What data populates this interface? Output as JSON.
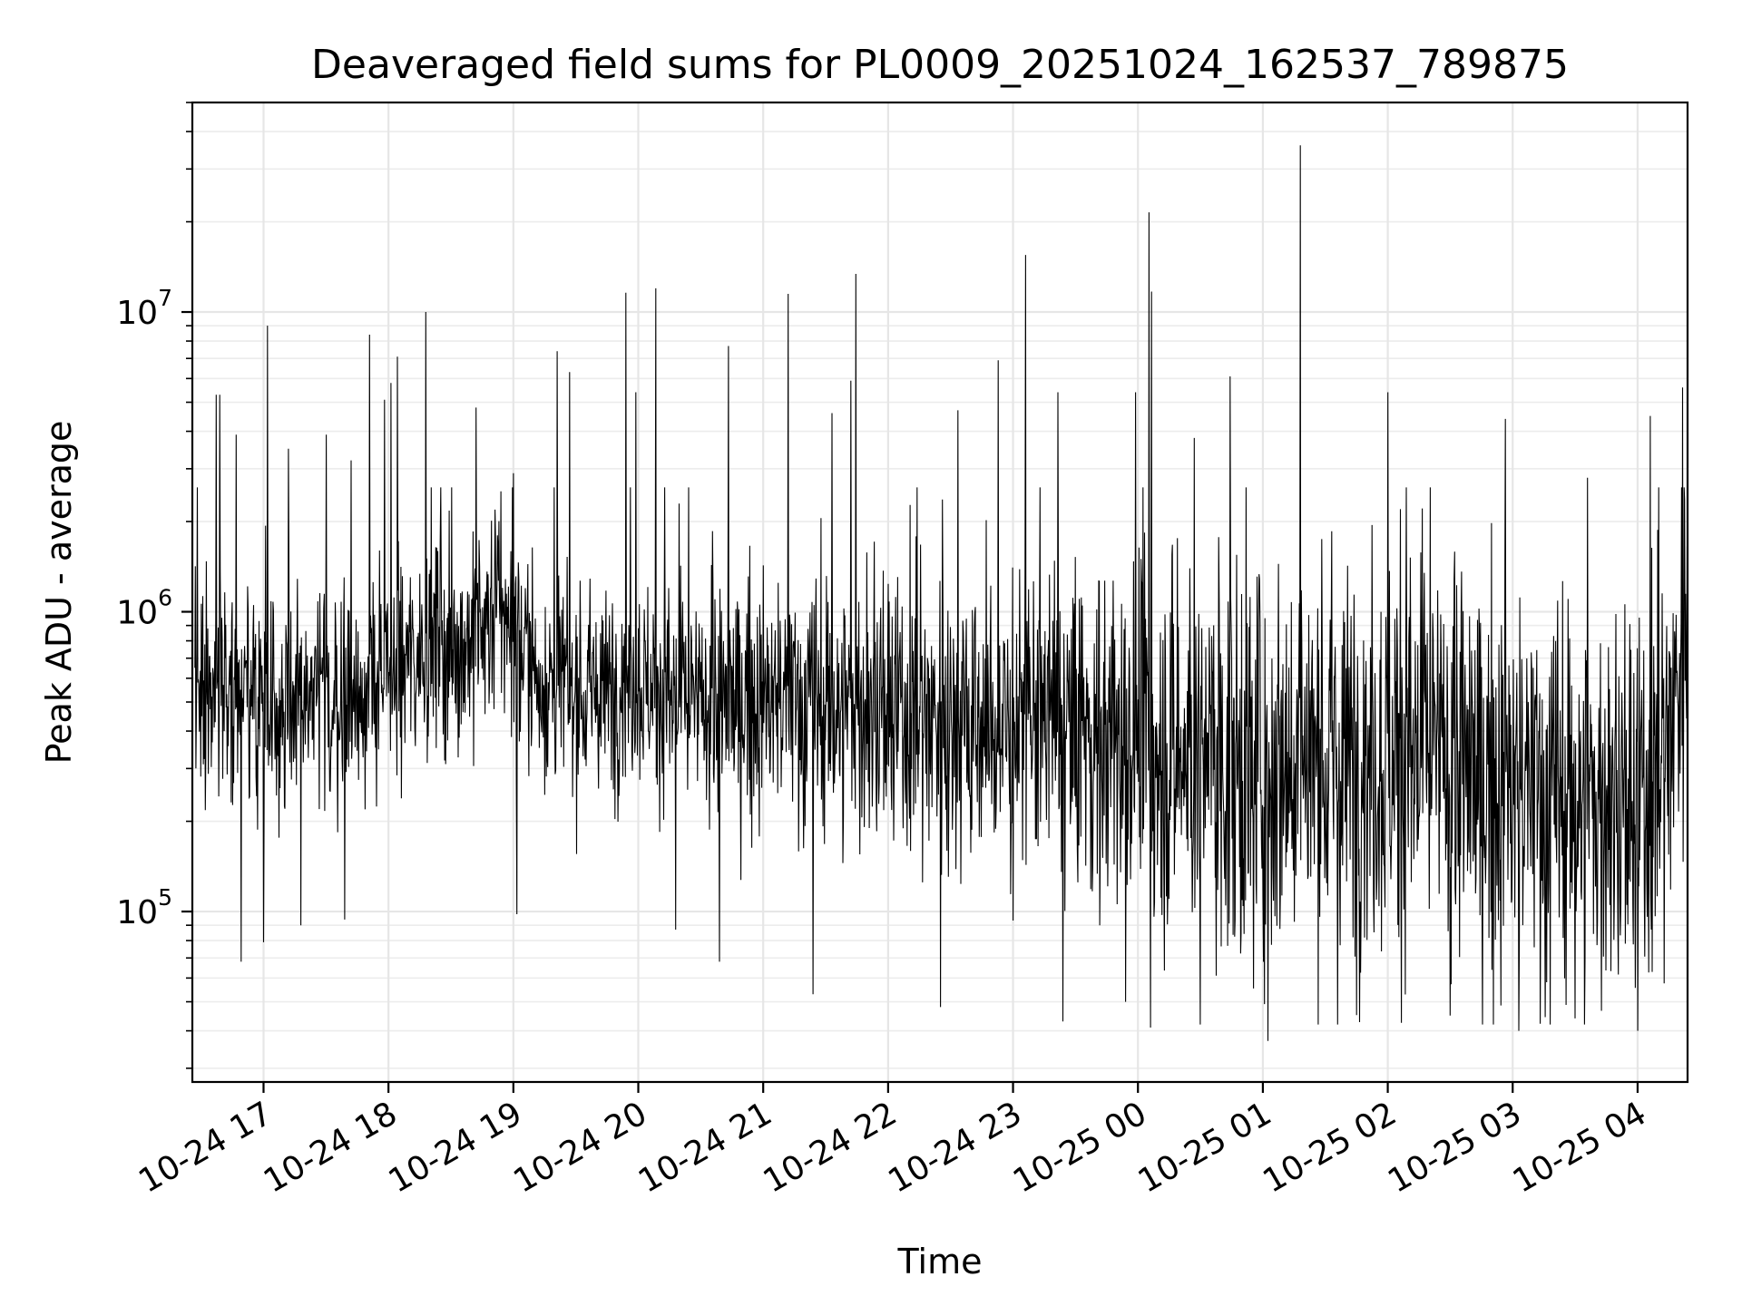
{
  "chart_data": {
    "type": "line",
    "title": "Deaveraged field sums for PL0009_20251024_162537_789875",
    "xlabel": "Time",
    "ylabel": "Peak ADU - average",
    "yscale": "log",
    "ylim": [
      27000,
      50000000
    ],
    "xlim_hours": [
      16.43,
      28.4
    ],
    "grid": true,
    "line_color": "#000000",
    "x_ticks": [
      {
        "hour": 17,
        "label": "10-24 17"
      },
      {
        "hour": 18,
        "label": "10-24 18"
      },
      {
        "hour": 19,
        "label": "10-24 19"
      },
      {
        "hour": 20,
        "label": "10-24 20"
      },
      {
        "hour": 21,
        "label": "10-24 21"
      },
      {
        "hour": 22,
        "label": "10-24 22"
      },
      {
        "hour": 23,
        "label": "10-24 23"
      },
      {
        "hour": 24,
        "label": "10-25 00"
      },
      {
        "hour": 25,
        "label": "10-25 01"
      },
      {
        "hour": 26,
        "label": "10-25 02"
      },
      {
        "hour": 27,
        "label": "10-25 03"
      },
      {
        "hour": 28,
        "label": "10-25 04"
      }
    ],
    "y_ticks": [
      {
        "value": 100000,
        "base": "10",
        "exp": "5"
      },
      {
        "value": 1000000,
        "base": "10",
        "exp": "6"
      },
      {
        "value": 10000000,
        "base": "10",
        "exp": "7"
      }
    ],
    "series": [
      {
        "name": "Peak ADU - average",
        "n_points": 3000,
        "baseline": [
          [
            16.45,
            550000
          ],
          [
            16.7,
            600000
          ],
          [
            17.0,
            480000
          ],
          [
            17.5,
            500000
          ],
          [
            18.0,
            580000
          ],
          [
            18.3,
            800000
          ],
          [
            18.6,
            750000
          ],
          [
            18.9,
            1050000
          ],
          [
            19.2,
            600000
          ],
          [
            19.6,
            520000
          ],
          [
            20.0,
            600000
          ],
          [
            20.4,
            480000
          ],
          [
            20.8,
            500000
          ],
          [
            21.2,
            500000
          ],
          [
            21.6,
            470000
          ],
          [
            22.0,
            430000
          ],
          [
            22.4,
            450000
          ],
          [
            22.8,
            400000
          ],
          [
            23.2,
            430000
          ],
          [
            23.6,
            380000
          ],
          [
            24.0,
            350000
          ],
          [
            24.4,
            320000
          ],
          [
            24.8,
            300000
          ],
          [
            25.2,
            330000
          ],
          [
            25.6,
            320000
          ],
          [
            26.0,
            330000
          ],
          [
            26.4,
            320000
          ],
          [
            26.8,
            270000
          ],
          [
            27.2,
            250000
          ],
          [
            27.6,
            230000
          ],
          [
            28.0,
            200000
          ],
          [
            28.2,
            300000
          ],
          [
            28.4,
            900000
          ]
        ],
        "spikes": [
          [
            16.62,
            5300000
          ],
          [
            16.65,
            5300000
          ],
          [
            16.78,
            3900000
          ],
          [
            17.03,
            9000000
          ],
          [
            17.2,
            3500000
          ],
          [
            17.5,
            3900000
          ],
          [
            17.7,
            3200000
          ],
          [
            17.85,
            8400000
          ],
          [
            17.97,
            5100000
          ],
          [
            18.02,
            5800000
          ],
          [
            18.07,
            7100000
          ],
          [
            18.3,
            10000000
          ],
          [
            18.7,
            4800000
          ],
          [
            19.0,
            2900000
          ],
          [
            19.35,
            7400000
          ],
          [
            19.45,
            6300000
          ],
          [
            19.9,
            11600000
          ],
          [
            19.98,
            5400000
          ],
          [
            20.14,
            12000000
          ],
          [
            20.72,
            7700000
          ],
          [
            21.2,
            11500000
          ],
          [
            21.55,
            4600000
          ],
          [
            21.7,
            5900000
          ],
          [
            21.74,
            13400000
          ],
          [
            22.56,
            4700000
          ],
          [
            22.88,
            6900000
          ],
          [
            23.1,
            15500000
          ],
          [
            23.36,
            5400000
          ],
          [
            23.98,
            5400000
          ],
          [
            24.09,
            21500000
          ],
          [
            24.11,
            11700000
          ],
          [
            24.45,
            3800000
          ],
          [
            24.74,
            6100000
          ],
          [
            25.3,
            36000000
          ],
          [
            26.0,
            5400000
          ],
          [
            26.1,
            2200000
          ],
          [
            26.94,
            4400000
          ],
          [
            27.3,
            2800000
          ],
          [
            27.6,
            2800000
          ],
          [
            28.1,
            4500000
          ],
          [
            28.36,
            5600000
          ]
        ],
        "dips": [
          [
            16.82,
            68000
          ],
          [
            17.0,
            79000
          ],
          [
            17.3,
            90000
          ],
          [
            17.65,
            94000
          ],
          [
            19.03,
            98000
          ],
          [
            20.3,
            87000
          ],
          [
            20.65,
            68000
          ],
          [
            21.4,
            53000
          ],
          [
            22.42,
            48000
          ],
          [
            23.4,
            43000
          ],
          [
            23.9,
            50000
          ],
          [
            24.1,
            41000
          ],
          [
            24.5,
            42000
          ],
          [
            25.04,
            37000
          ],
          [
            25.6,
            42000
          ],
          [
            26.5,
            45000
          ],
          [
            27.05,
            40000
          ],
          [
            27.3,
            42000
          ],
          [
            27.5,
            44000
          ],
          [
            28.0,
            40000
          ]
        ]
      }
    ]
  }
}
